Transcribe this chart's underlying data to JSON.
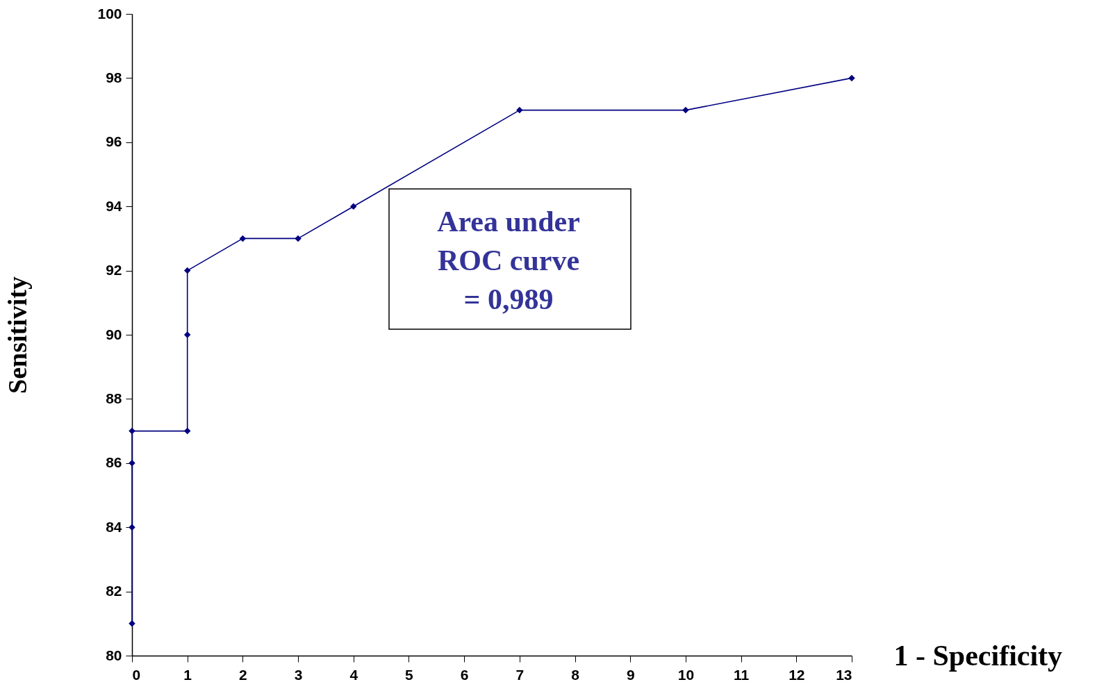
{
  "chart_data": {
    "type": "line",
    "xlabel": "1 - Specificity",
    "ylabel": "Sensitivity",
    "x": [
      0,
      0,
      0,
      0,
      1,
      1,
      1,
      2,
      3,
      4,
      7,
      10,
      13
    ],
    "series": [
      {
        "color": "#000080",
        "values": [
          81,
          84,
          86,
          87,
          87,
          90,
          92,
          93,
          93,
          94,
          97,
          97,
          98
        ]
      }
    ],
    "xlim": [
      0,
      13
    ],
    "xticks": [
      0,
      1,
      2,
      3,
      4,
      5,
      6,
      7,
      8,
      9,
      10,
      11,
      12,
      13
    ],
    "ylim": [
      80,
      100
    ],
    "yticks": [
      80,
      82,
      84,
      86,
      88,
      90,
      92,
      94,
      96,
      98,
      100
    ],
    "grid": false,
    "marker": "diamond",
    "line_style": "solid",
    "annotations": [
      "Area under\nROC curve\n= 0,989"
    ]
  }
}
